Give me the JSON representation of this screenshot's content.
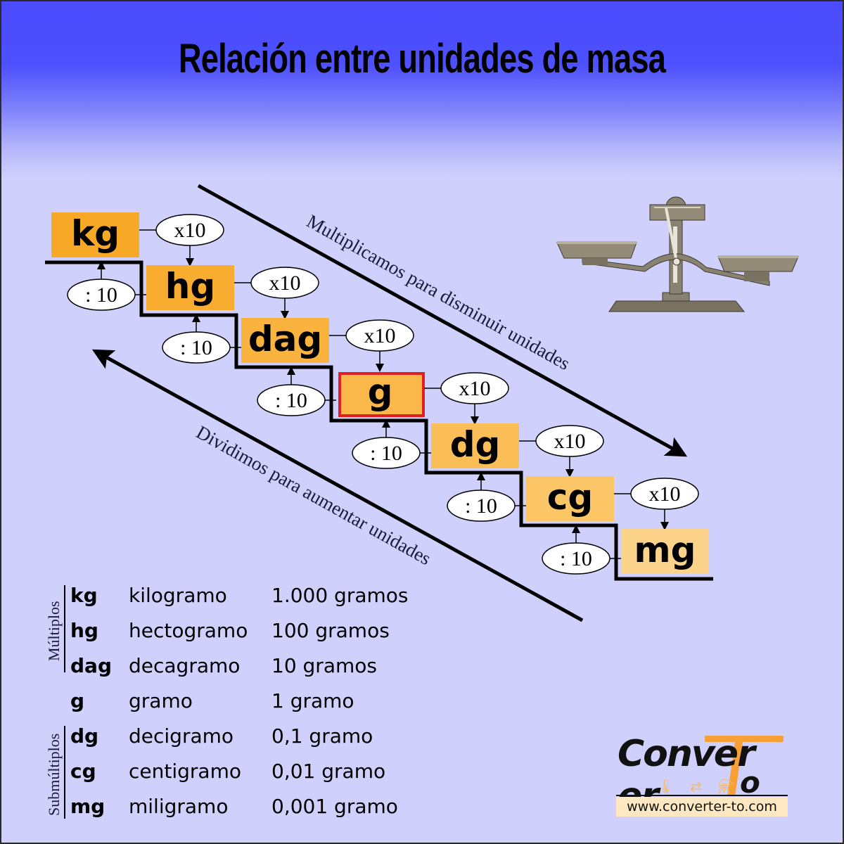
{
  "title": "Relación entre unidades de masa",
  "colors": {
    "background_top": "#4a4cfd",
    "background_bottom": "#cfd0fc",
    "highlight_border": "#e02020",
    "logo_accent": "#f7a035"
  },
  "staircase": {
    "units": [
      {
        "symbol": "kg",
        "color": "#f7a826"
      },
      {
        "symbol": "hg",
        "color": "#f8ad30"
      },
      {
        "symbol": "dag",
        "color": "#f9b33e"
      },
      {
        "symbol": "g",
        "color": "#fab74a",
        "highlighted": true
      },
      {
        "symbol": "dg",
        "color": "#fbbd55"
      },
      {
        "symbol": "cg",
        "color": "#fcc566"
      },
      {
        "symbol": "mg",
        "color": "#fdd28a"
      }
    ],
    "multiply_label": "x10",
    "divide_label": ": 10"
  },
  "arrows": {
    "down_label": "Multiplicamos para disminuir unidades",
    "up_label": "Dividimos para aumentar unidades"
  },
  "scale_icon": "balance-scale-icon",
  "table": {
    "groups": [
      {
        "label": "Múltiplos",
        "rows": [
          0,
          1,
          2
        ]
      },
      {
        "label": "Submúltiplos",
        "rows": [
          4,
          5,
          6
        ]
      }
    ],
    "rows": [
      {
        "symbol": "kg",
        "name": "kilogramo",
        "value": "1.000 gramos"
      },
      {
        "symbol": "hg",
        "name": "hectogramo",
        "value": "100 gramos"
      },
      {
        "symbol": "dag",
        "name": "decagramo",
        "value": "10 gramos"
      },
      {
        "symbol": "g",
        "name": "gramo",
        "value": "1 gramo"
      },
      {
        "symbol": "dg",
        "name": "decigramo",
        "value": "0,1 gramo"
      },
      {
        "symbol": "cg",
        "name": "centigramo",
        "value": "0,01 gramo"
      },
      {
        "symbol": "mg",
        "name": "miligramo",
        "value": "0,001 gramo"
      }
    ]
  },
  "logo": {
    "word": "Conver",
    "word_end": "er",
    "o": "o",
    "icons": "🌡 ⇄ ⚗",
    "url": "www.converter-to.com"
  }
}
